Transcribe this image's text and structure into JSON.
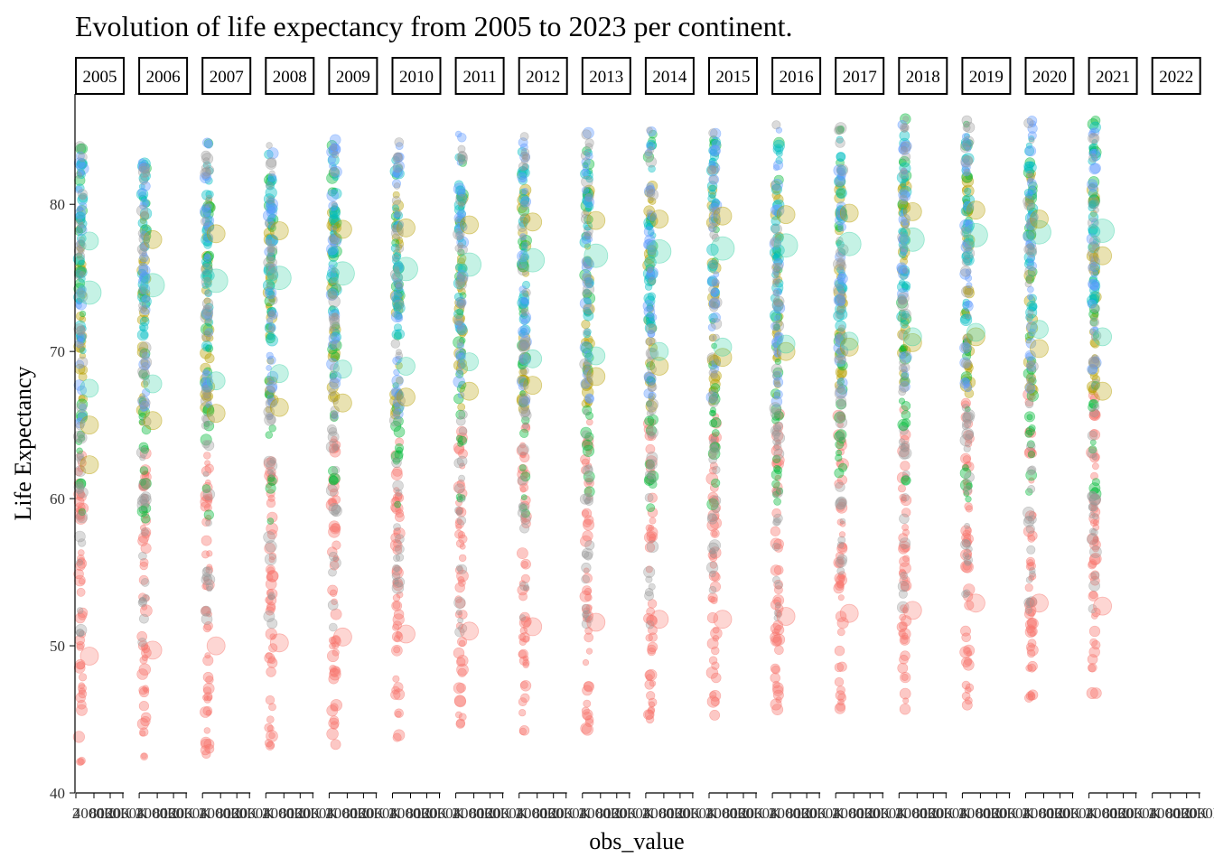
{
  "chart_data": {
    "type": "scatter",
    "title": "Evolution of life expectancy from 2005 to 2023 per continent.",
    "xlabel": "obs_value",
    "ylabel": "Life Expectancy",
    "ylim": [
      40,
      87.5
    ],
    "y_ticks": [
      40,
      50,
      60,
      70,
      80
    ],
    "facets": [
      "2005",
      "2006",
      "2007",
      "2008",
      "2009",
      "2010",
      "2011",
      "2012",
      "2013",
      "2014",
      "2015",
      "2016",
      "2017",
      "2018",
      "2019",
      "2020",
      "2021",
      "2022"
    ],
    "x_tick_labels": [
      "2",
      "4000K",
      "8000K",
      "12000K"
    ],
    "series_colors": {
      "africa": "#F8766D",
      "americas": "#B79F00",
      "asia": "#00BA38",
      "europe": "#00BFC4",
      "oceania": "#619CFF",
      "other": "#999999"
    },
    "series_ranges": {
      "africa": [
        42,
        63
      ],
      "americas": [
        65,
        80
      ],
      "asia": [
        58,
        84
      ],
      "europe": [
        70,
        83
      ],
      "oceania": [
        65,
        84
      ],
      "other": [
        50,
        84
      ]
    },
    "large_points": {
      "2005": [
        74.0,
        65.0,
        67.5,
        62.3,
        77.5,
        49.3
      ],
      "2006": [
        74.5,
        65.3,
        67.8,
        77.6,
        49.7
      ],
      "2007": [
        74.8,
        65.8,
        68.0,
        78.0,
        50.0
      ],
      "2008": [
        75.0,
        66.2,
        68.5,
        78.2,
        50.2
      ],
      "2009": [
        75.3,
        66.5,
        68.8,
        78.3,
        50.6
      ],
      "2010": [
        75.6,
        66.9,
        69.0,
        78.4,
        50.8
      ],
      "2011": [
        75.9,
        67.3,
        69.3,
        78.6,
        51.0
      ],
      "2012": [
        76.2,
        67.7,
        69.5,
        78.8,
        51.3
      ],
      "2013": [
        76.5,
        68.3,
        69.7,
        78.9,
        51.6
      ],
      "2014": [
        76.8,
        69.0,
        70.0,
        79.0,
        51.8
      ],
      "2015": [
        77.0,
        69.6,
        70.3,
        79.2,
        51.8
      ],
      "2016": [
        77.2,
        70.0,
        70.5,
        79.3,
        52.0
      ],
      "2017": [
        77.3,
        70.3,
        70.7,
        79.4,
        52.2
      ],
      "2018": [
        77.6,
        70.6,
        71.0,
        79.5,
        52.4
      ],
      "2019": [
        77.9,
        71.0,
        71.3,
        79.6,
        52.9
      ],
      "2020": [
        78.1,
        70.2,
        71.5,
        79.0,
        52.9
      ],
      "2021": [
        78.2,
        67.3,
        71.0,
        76.5,
        52.7
      ]
    },
    "grid": false,
    "legend": "none"
  }
}
